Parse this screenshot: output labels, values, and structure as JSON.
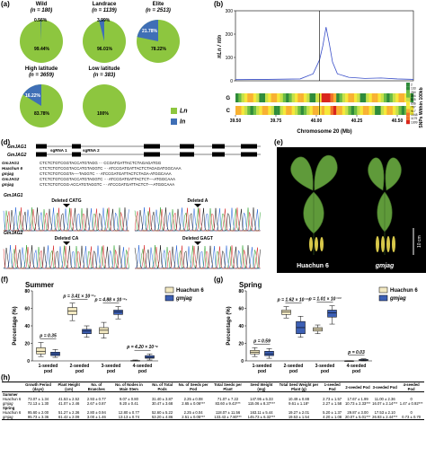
{
  "panel_labels": {
    "a": "(a)",
    "b": "(b)",
    "d": "(d)",
    "e": "(e)",
    "f": "(f)",
    "g": "(g)",
    "h": "(h)"
  },
  "pies": [
    {
      "name": "Wild",
      "n": "(n = 180)",
      "pct_ln": "99.44%",
      "pct_in": "0.56%",
      "in_frac": 0.0056
    },
    {
      "name": "Landrace",
      "n": "(n = 1139)",
      "pct_ln": "96.01%",
      "pct_in": "3.99%",
      "in_frac": 0.0399
    },
    {
      "name": "Elite",
      "n": "(n = 2513)",
      "pct_ln": "78.22%",
      "pct_in": "21.78%",
      "in_frac": 0.2178
    },
    {
      "name": "High latitude",
      "n": "(n = 3659)",
      "pct_ln": "83.78%",
      "pct_in": "16.22%",
      "in_frac": 0.1622
    },
    {
      "name": "Low latitude",
      "n": "(n = 383)",
      "pct_ln": "100%",
      "pct_in": "",
      "in_frac": 0
    }
  ],
  "pie_legend": [
    {
      "label": "Ln",
      "color": "#8dc63f"
    },
    {
      "label": "In",
      "color": "#3f6fb6"
    }
  ],
  "colors": {
    "ln": "#8dc63f",
    "in": "#3f6fb6",
    "huachun": "#f3e9c2",
    "gmjag": "#3c5fb4"
  },
  "panel_b": {
    "ylabel": "πLn / πIn",
    "yticks": [
      "0",
      "100",
      "200",
      "300"
    ],
    "xlabel": "Chromosome 20 (Mb)",
    "xticks": [
      "39.50",
      "39.75",
      "40.00",
      "40.25",
      "40.50"
    ],
    "heat_ylabel": "SNPs Within 100kb",
    "heat_rows": [
      "G",
      "C"
    ],
    "colorbar": [
      "2",
      "133",
      "264",
      "394",
      "525",
      "656",
      "787",
      "917",
      "1048",
      "1179",
      "1309"
    ]
  },
  "panel_d": {
    "genes": [
      "GmJAG1",
      "GmJAG2"
    ],
    "sgrna": [
      "sgRNA 1",
      "sgRNA 2"
    ],
    "seq_rows": [
      {
        "label": "GmJAG1",
        "seq": "CTCTCTGTCGGTACCATGTAGG ··· CCGATGATTACTCTAGAGATGG"
      },
      {
        "label": "Huachun 6",
        "seq": "CTCTCTGTCGGTACCATGTAGGTC ··· ATCCGATGATTACTCTAGAGATGGCAAA"
      },
      {
        "label": "gmjag",
        "seq": "CTCTCTGTCGGTA----TAGGTC ··· ATCCGATGATTACTCTAGA-ATGGCAAA"
      },
      {
        "label": "GmJAG2",
        "seq": "CTCTCTGTCGGTACCATGTAGGTC ··· ATCCGATGATTACTCT----ATGGCAAA"
      },
      {
        "label": "gmjag",
        "seq": "CTCTCTGTCGG-ACCATGTAGGTC ··· ATCCGATGATTACTCT----ATGGCAAA"
      }
    ],
    "chrom_labels": [
      "GmJAG1",
      "GmJAG2"
    ],
    "deletions": [
      "Deleted CATG",
      "Deleted A",
      "Deleted CA",
      "Deleted GAGT"
    ]
  },
  "panel_e": {
    "left": "Huachun 6",
    "right": "gmjag",
    "scale": "10 cm"
  },
  "panel_f": {
    "title": "Summer",
    "ylabel": "Percentage (%)",
    "yticks": [
      "0",
      "20",
      "40",
      "60",
      "80"
    ],
    "categories": [
      "1-seeded pod",
      "2-seeded pod",
      "3-seeded pod",
      "4-seeded pod"
    ],
    "pvals": [
      "p = 0.35",
      "p = 3.41 × 10⁻¹⁴",
      "p = 4.88 × 10⁻¹⁵",
      "p = 4.20 × 10⁻⁸"
    ],
    "legend": [
      "Huachun 6",
      "gmjag"
    ]
  },
  "panel_g": {
    "title": "Spring",
    "ylabel": "Percentage (%)",
    "yticks": [
      "0",
      "20",
      "40",
      "60",
      "80"
    ],
    "categories": [
      "1-seeded pod",
      "2-seeded pod",
      "3-seeded pod",
      "4-seeded pod"
    ],
    "pvals": [
      "p = 0.59",
      "p = 1.62 × 10⁻¹³",
      "p = 1.01 × 10⁻¹³",
      "p = 0.03"
    ],
    "legend": [
      "Huachun 6",
      "gmjag"
    ]
  },
  "chart_data": [
    {
      "type": "pie",
      "title": "Wild (n = 180)",
      "categories": [
        "Ln",
        "In"
      ],
      "values": [
        99.44,
        0.56
      ]
    },
    {
      "type": "pie",
      "title": "Landrace (n = 1139)",
      "categories": [
        "Ln",
        "In"
      ],
      "values": [
        96.01,
        3.99
      ]
    },
    {
      "type": "pie",
      "title": "Elite (n = 2513)",
      "categories": [
        "Ln",
        "In"
      ],
      "values": [
        78.22,
        21.78
      ]
    },
    {
      "type": "pie",
      "title": "High latitude (n = 3659)",
      "categories": [
        "Ln",
        "In"
      ],
      "values": [
        83.78,
        16.22
      ]
    },
    {
      "type": "pie",
      "title": "Low latitude (n = 383)",
      "categories": [
        "Ln",
        "In"
      ],
      "values": [
        100,
        0
      ]
    },
    {
      "type": "line",
      "xlabel": "Chromosome 20 (Mb)",
      "ylabel": "πLn / πIn",
      "xlim": [
        39.5,
        40.6
      ],
      "ylim": [
        0,
        300
      ],
      "x": [
        39.5,
        39.7,
        39.9,
        39.98,
        40.02,
        40.04,
        40.06,
        40.08,
        40.1,
        40.13,
        40.2,
        40.3,
        40.4,
        40.5,
        40.6
      ],
      "y": [
        5,
        6,
        8,
        30,
        90,
        150,
        230,
        160,
        80,
        30,
        15,
        10,
        12,
        8,
        6
      ]
    },
    {
      "type": "box",
      "title": "Summer",
      "ylabel": "Percentage (%)",
      "ylim": [
        0,
        80
      ],
      "categories": [
        "1-seeded pod",
        "2-seeded pod",
        "3-seeded pod",
        "4-seeded pod"
      ],
      "series": [
        {
          "name": "Huachun 6",
          "box": [
            [
              5,
              8,
              11,
              15,
              21
            ],
            [
              46,
              53,
              57,
              61,
              66
            ],
            [
              26,
              31,
              35,
              38,
              44
            ],
            [
              0,
              0,
              0,
              0.4,
              1
            ]
          ]
        },
        {
          "name": "gmjag",
          "box": [
            [
              4,
              6,
              8,
              10,
              13
            ],
            [
              27,
              31,
              34,
              36,
              40
            ],
            [
              48,
              53,
              56,
              58,
              62
            ],
            [
              1,
              3,
              4,
              6,
              8
            ]
          ]
        }
      ]
    },
    {
      "type": "box",
      "title": "Spring",
      "ylabel": "Percentage (%)",
      "ylim": [
        0,
        80
      ],
      "categories": [
        "1-seeded pod",
        "2-seeded pod",
        "3-seeded pod",
        "4-seeded pod"
      ],
      "series": [
        {
          "name": "Huachun 6",
          "box": [
            [
              5,
              8,
              10,
              12,
              15
            ],
            [
              49,
              53,
              56,
              58,
              62
            ],
            [
              31,
              34,
              36,
              38,
              41
            ],
            [
              0,
              0,
              0,
              0,
              0.2
            ]
          ]
        },
        {
          "name": "gmjag",
          "box": [
            [
              3,
              6,
              8,
              11,
              14
            ],
            [
              27,
              31,
              38,
              45,
              51
            ],
            [
              42,
              50,
              55,
              58,
              63
            ],
            [
              0,
              0.5,
              1,
              1.6,
              2.3
            ]
          ]
        }
      ]
    }
  ],
  "table": {
    "headers": [
      "",
      "Growth Period (days)",
      "Plant Height (cm)",
      "No. of Branches",
      "No. of Nodes in Main Stem",
      "No. of Total Pods",
      "No. of Seeds per Pod",
      "Total Seeds per Plant",
      "Seed Weight (mg)",
      "Total Seed Weight per Plant (g)",
      "1-seeded Pod",
      "2-seeded Pod",
      "3-seeded Pod",
      "4-seeded Pod"
    ],
    "sections": [
      {
        "name": "Summer",
        "rows": [
          [
            "Huachun 6",
            "73.07 ± 1.34",
            "41.53 ± 2.52",
            "2.93 ± 0.77",
            "9.07 ± 0.80",
            "31.40 ± 3.87",
            "2.25 ± 0.08",
            "71.07 ± 7.22",
            "147.95 ± 5.33",
            "10.49 ± 0.88",
            "2.73 ± 1.57",
            "17.67 ± 1.99",
            "11.00 ± 2.36",
            "0"
          ],
          [
            "gmjag",
            "72.13 ± 1.30",
            "41.07 ± 2.46",
            "2.67 ± 0.87",
            "9.20 ± 0.41",
            "30.47 ± 3.68",
            "2.65 ± 0.06***",
            "83.60 ± 9.43***",
            "115.06 ± 8.37***",
            "9.61 ± 1.18*",
            "2.27 ± 1.58",
            "10.73 ± 2.33***",
            "16.07 ± 2.14***",
            "1.47 ± 0.92***"
          ]
        ]
      },
      {
        "name": "Spring",
        "rows": [
          [
            "Huachun 6",
            "95.60 ± 2.00",
            "51.27 ± 2.36",
            "2.80 ± 0.94",
            "12.80 ± 0.77",
            "52.60 ± 5.22",
            "2.25 ± 0.04",
            "118.07 ± 11.56",
            "163.11 ± 5.44",
            "19.27 ± 2.01",
            "5.20 ± 1.37",
            "29.87 ± 3.00",
            "17.53 ± 2.10",
            "0"
          ],
          [
            "gmjag",
            "95.73 ± 3.36",
            "61.42 ± 2.09",
            "3.00 ± 1.46",
            "13.13 ± 0.74",
            "53.20 ± 4.86",
            "2.51 ± 0.05***",
            "133.43 ± 7.80***",
            "145.73 ± 6.32***",
            "19.53 ± 1.54",
            "4.20 ± 1.08",
            "20.07 ± 5.01***",
            "26.93 ± 2.44***",
            "0.73 ± 0.70"
          ]
        ]
      }
    ]
  }
}
